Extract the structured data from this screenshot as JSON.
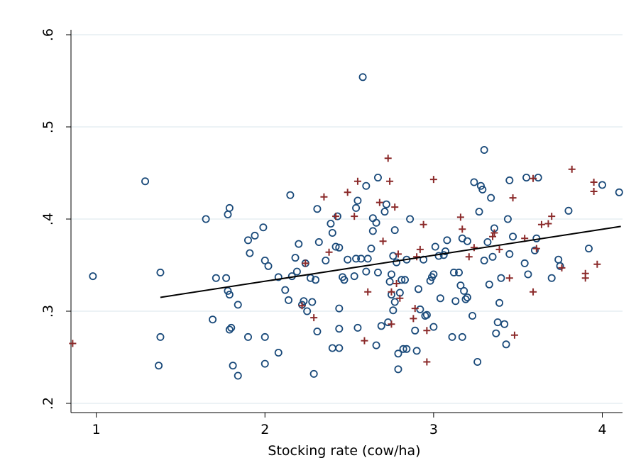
{
  "chart_data": {
    "type": "scatter",
    "title": "",
    "xlabel": "Stocking rate (cow/ha)",
    "ylabel": "",
    "xlim": [
      0.85,
      4.12
    ],
    "ylim": [
      0.19,
      0.61
    ],
    "xticks": [
      {
        "value": 1,
        "label": "1"
      },
      {
        "value": 2,
        "label": "2"
      },
      {
        "value": 3,
        "label": "3"
      },
      {
        "value": 4,
        "label": "4"
      }
    ],
    "yticks": [
      {
        "value": 0.2,
        "label": ".2"
      },
      {
        "value": 0.3,
        "label": ".3"
      },
      {
        "value": 0.4,
        "label": ".4"
      },
      {
        "value": 0.5,
        "label": ".5"
      },
      {
        "value": 0.6,
        "label": ".6"
      }
    ],
    "grid": "horizontal",
    "legend": "none",
    "colors": {
      "circle": "#1a4a7a",
      "plus": "#8b2a2a",
      "fit": "#000000",
      "grid": "#e6eef2"
    },
    "series": [
      {
        "marker": "circle",
        "points": [
          [
            0.98,
            0.338
          ],
          [
            1.29,
            0.441
          ],
          [
            1.37,
            0.241
          ],
          [
            1.38,
            0.342
          ],
          [
            1.38,
            0.272
          ],
          [
            1.65,
            0.4
          ],
          [
            1.69,
            0.291
          ],
          [
            1.71,
            0.336
          ],
          [
            1.77,
            0.336
          ],
          [
            1.78,
            0.405
          ],
          [
            1.79,
            0.412
          ],
          [
            1.78,
            0.322
          ],
          [
            1.79,
            0.318
          ],
          [
            1.79,
            0.28
          ],
          [
            1.8,
            0.282
          ],
          [
            1.81,
            0.241
          ],
          [
            1.84,
            0.23
          ],
          [
            1.84,
            0.307
          ],
          [
            1.9,
            0.377
          ],
          [
            1.91,
            0.363
          ],
          [
            1.9,
            0.272
          ],
          [
            1.94,
            0.382
          ],
          [
            1.99,
            0.391
          ],
          [
            2.0,
            0.355
          ],
          [
            2.0,
            0.272
          ],
          [
            2.0,
            0.243
          ],
          [
            2.02,
            0.349
          ],
          [
            2.08,
            0.337
          ],
          [
            2.08,
            0.255
          ],
          [
            2.12,
            0.323
          ],
          [
            2.14,
            0.312
          ],
          [
            2.15,
            0.426
          ],
          [
            2.16,
            0.338
          ],
          [
            2.18,
            0.358
          ],
          [
            2.19,
            0.343
          ],
          [
            2.2,
            0.373
          ],
          [
            2.22,
            0.307
          ],
          [
            2.23,
            0.311
          ],
          [
            2.24,
            0.352
          ],
          [
            2.25,
            0.3
          ],
          [
            2.27,
            0.336
          ],
          [
            2.28,
            0.31
          ],
          [
            2.29,
            0.232
          ],
          [
            2.3,
            0.334
          ],
          [
            2.31,
            0.411
          ],
          [
            2.31,
            0.278
          ],
          [
            2.32,
            0.375
          ],
          [
            2.36,
            0.355
          ],
          [
            2.39,
            0.395
          ],
          [
            2.4,
            0.26
          ],
          [
            2.4,
            0.385
          ],
          [
            2.42,
            0.37
          ],
          [
            2.43,
            0.403
          ],
          [
            2.44,
            0.369
          ],
          [
            2.44,
            0.303
          ],
          [
            2.44,
            0.281
          ],
          [
            2.44,
            0.26
          ],
          [
            2.46,
            0.337
          ],
          [
            2.47,
            0.334
          ],
          [
            2.49,
            0.356
          ],
          [
            2.53,
            0.338
          ],
          [
            2.54,
            0.357
          ],
          [
            2.54,
            0.412
          ],
          [
            2.55,
            0.42
          ],
          [
            2.55,
            0.282
          ],
          [
            2.57,
            0.357
          ],
          [
            2.58,
            0.554
          ],
          [
            2.6,
            0.343
          ],
          [
            2.6,
            0.436
          ],
          [
            2.61,
            0.357
          ],
          [
            2.63,
            0.368
          ],
          [
            2.64,
            0.387
          ],
          [
            2.64,
            0.401
          ],
          [
            2.66,
            0.396
          ],
          [
            2.66,
            0.263
          ],
          [
            2.67,
            0.445
          ],
          [
            2.67,
            0.342
          ],
          [
            2.69,
            0.284
          ],
          [
            2.71,
            0.408
          ],
          [
            2.72,
            0.416
          ],
          [
            2.73,
            0.288
          ],
          [
            2.74,
            0.332
          ],
          [
            2.75,
            0.318
          ],
          [
            2.75,
            0.34
          ],
          [
            2.76,
            0.301
          ],
          [
            2.76,
            0.36
          ],
          [
            2.77,
            0.388
          ],
          [
            2.77,
            0.31
          ],
          [
            2.78,
            0.353
          ],
          [
            2.79,
            0.254
          ],
          [
            2.79,
            0.237
          ],
          [
            2.8,
            0.32
          ],
          [
            2.81,
            0.334
          ],
          [
            2.82,
            0.259
          ],
          [
            2.83,
            0.334
          ],
          [
            2.84,
            0.259
          ],
          [
            2.84,
            0.356
          ],
          [
            2.86,
            0.4
          ],
          [
            2.89,
            0.279
          ],
          [
            2.9,
            0.257
          ],
          [
            2.91,
            0.324
          ],
          [
            2.92,
            0.302
          ],
          [
            2.94,
            0.356
          ],
          [
            2.95,
            0.295
          ],
          [
            2.96,
            0.296
          ],
          [
            2.98,
            0.333
          ],
          [
            2.99,
            0.337
          ],
          [
            3.0,
            0.34
          ],
          [
            3.0,
            0.283
          ],
          [
            3.01,
            0.37
          ],
          [
            3.03,
            0.36
          ],
          [
            3.04,
            0.314
          ],
          [
            3.06,
            0.361
          ],
          [
            3.07,
            0.365
          ],
          [
            3.08,
            0.377
          ],
          [
            3.11,
            0.272
          ],
          [
            3.12,
            0.342
          ],
          [
            3.13,
            0.311
          ],
          [
            3.15,
            0.342
          ],
          [
            3.16,
            0.328
          ],
          [
            3.17,
            0.272
          ],
          [
            3.17,
            0.379
          ],
          [
            3.18,
            0.322
          ],
          [
            3.19,
            0.313
          ],
          [
            3.2,
            0.315
          ],
          [
            3.2,
            0.376
          ],
          [
            3.23,
            0.295
          ],
          [
            3.24,
            0.44
          ],
          [
            3.26,
            0.245
          ],
          [
            3.27,
            0.408
          ],
          [
            3.28,
            0.436
          ],
          [
            3.29,
            0.432
          ],
          [
            3.3,
            0.475
          ],
          [
            3.3,
            0.355
          ],
          [
            3.32,
            0.375
          ],
          [
            3.33,
            0.329
          ],
          [
            3.34,
            0.423
          ],
          [
            3.35,
            0.359
          ],
          [
            3.36,
            0.39
          ],
          [
            3.37,
            0.276
          ],
          [
            3.38,
            0.288
          ],
          [
            3.39,
            0.309
          ],
          [
            3.4,
            0.336
          ],
          [
            3.42,
            0.286
          ],
          [
            3.43,
            0.264
          ],
          [
            3.44,
            0.4
          ],
          [
            3.45,
            0.442
          ],
          [
            3.45,
            0.362
          ],
          [
            3.47,
            0.381
          ],
          [
            3.54,
            0.352
          ],
          [
            3.55,
            0.445
          ],
          [
            3.56,
            0.34
          ],
          [
            3.6,
            0.366
          ],
          [
            3.61,
            0.379
          ],
          [
            3.62,
            0.445
          ],
          [
            3.7,
            0.336
          ],
          [
            3.74,
            0.356
          ],
          [
            3.75,
            0.349
          ],
          [
            3.8,
            0.409
          ],
          [
            3.92,
            0.368
          ],
          [
            4.0,
            0.437
          ],
          [
            4.1,
            0.429
          ]
        ]
      },
      {
        "marker": "plus",
        "points": [
          [
            0.86,
            0.265
          ],
          [
            2.22,
            0.306
          ],
          [
            2.24,
            0.352
          ],
          [
            2.29,
            0.293
          ],
          [
            2.35,
            0.424
          ],
          [
            2.38,
            0.364
          ],
          [
            2.42,
            0.403
          ],
          [
            2.49,
            0.429
          ],
          [
            2.53,
            0.403
          ],
          [
            2.55,
            0.441
          ],
          [
            2.59,
            0.268
          ],
          [
            2.61,
            0.321
          ],
          [
            2.68,
            0.418
          ],
          [
            2.7,
            0.376
          ],
          [
            2.73,
            0.466
          ],
          [
            2.74,
            0.441
          ],
          [
            2.75,
            0.286
          ],
          [
            2.75,
            0.321
          ],
          [
            2.77,
            0.413
          ],
          [
            2.78,
            0.33
          ],
          [
            2.79,
            0.362
          ],
          [
            2.8,
            0.314
          ],
          [
            2.88,
            0.292
          ],
          [
            2.89,
            0.303
          ],
          [
            2.9,
            0.359
          ],
          [
            2.92,
            0.367
          ],
          [
            2.94,
            0.394
          ],
          [
            2.96,
            0.279
          ],
          [
            2.96,
            0.245
          ],
          [
            3.0,
            0.443
          ],
          [
            3.16,
            0.402
          ],
          [
            3.17,
            0.389
          ],
          [
            3.21,
            0.359
          ],
          [
            3.24,
            0.369
          ],
          [
            3.35,
            0.381
          ],
          [
            3.36,
            0.385
          ],
          [
            3.39,
            0.367
          ],
          [
            3.45,
            0.336
          ],
          [
            3.47,
            0.423
          ],
          [
            3.48,
            0.274
          ],
          [
            3.54,
            0.379
          ],
          [
            3.59,
            0.444
          ],
          [
            3.59,
            0.321
          ],
          [
            3.61,
            0.368
          ],
          [
            3.64,
            0.394
          ],
          [
            3.68,
            0.395
          ],
          [
            3.7,
            0.403
          ],
          [
            3.76,
            0.347
          ],
          [
            3.82,
            0.454
          ],
          [
            3.9,
            0.341
          ],
          [
            3.9,
            0.336
          ],
          [
            3.95,
            0.44
          ],
          [
            3.95,
            0.43
          ],
          [
            3.97,
            0.351
          ]
        ]
      }
    ],
    "fit_line": {
      "x": [
        1.38,
        4.11
      ],
      "y": [
        0.315,
        0.392
      ]
    }
  }
}
